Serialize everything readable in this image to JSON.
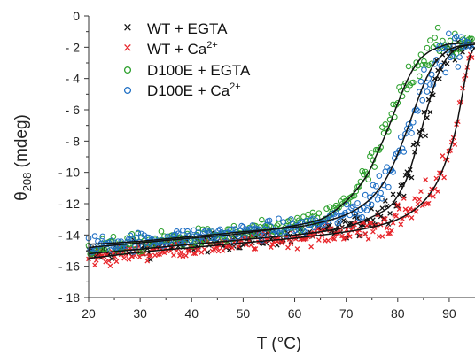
{
  "chart_data": {
    "type": "scatter",
    "xlabel": "T (°C)",
    "ylabel_main": "θ",
    "ylabel_sub": "208",
    "ylabel_rest": " (mdeg)",
    "xlim": [
      20,
      95
    ],
    "ylim": [
      -18,
      0
    ],
    "xticks": [
      20,
      30,
      40,
      50,
      60,
      70,
      80,
      90
    ],
    "yticks": [
      0,
      -2,
      -4,
      -6,
      -8,
      -10,
      -12,
      -14,
      -16,
      -18
    ],
    "grid": false,
    "legend_position": "top-center",
    "series": [
      {
        "name_main": "WT + EGTA",
        "name_sup": "",
        "color": "#111111",
        "marker": "x",
        "fit": [
          [
            20,
            -15.2
          ],
          [
            30,
            -14.9
          ],
          [
            40,
            -14.6
          ],
          [
            50,
            -14.3
          ],
          [
            60,
            -14.0
          ],
          [
            65,
            -13.8
          ],
          [
            70,
            -13.5
          ],
          [
            74,
            -13.0
          ],
          [
            78,
            -12.3
          ],
          [
            80,
            -11.5
          ],
          [
            82,
            -10.2
          ],
          [
            84,
            -8.0
          ],
          [
            86,
            -5.6
          ],
          [
            88,
            -3.6
          ],
          [
            90,
            -2.5
          ],
          [
            92,
            -2.0
          ],
          [
            95,
            -1.8
          ]
        ]
      },
      {
        "name_main": "WT + Ca",
        "name_sup": "2+",
        "color": "#e8262b",
        "marker": "x",
        "fit": [
          [
            20,
            -15.5
          ],
          [
            30,
            -15.1
          ],
          [
            40,
            -14.8
          ],
          [
            50,
            -14.5
          ],
          [
            60,
            -14.2
          ],
          [
            70,
            -13.8
          ],
          [
            75,
            -13.5
          ],
          [
            80,
            -13.0
          ],
          [
            84,
            -12.2
          ],
          [
            87,
            -11.0
          ],
          [
            89,
            -9.6
          ],
          [
            91,
            -7.6
          ],
          [
            92,
            -6.0
          ],
          [
            93,
            -4.2
          ],
          [
            94,
            -2.6
          ],
          [
            95,
            -2.0
          ]
        ]
      },
      {
        "name_main": "D100E + EGTA",
        "name_sup": "",
        "color": "#2ca02c",
        "marker": "o",
        "fit": [
          [
            20,
            -14.8
          ],
          [
            30,
            -14.5
          ],
          [
            40,
            -14.2
          ],
          [
            50,
            -13.9
          ],
          [
            60,
            -13.4
          ],
          [
            65,
            -13.0
          ],
          [
            68,
            -12.4
          ],
          [
            71,
            -11.5
          ],
          [
            74,
            -10.2
          ],
          [
            76,
            -8.8
          ],
          [
            78,
            -7.3
          ],
          [
            80,
            -5.6
          ],
          [
            82,
            -4.0
          ],
          [
            84,
            -2.9
          ],
          [
            86,
            -2.3
          ],
          [
            88,
            -2.0
          ],
          [
            90,
            -1.8
          ],
          [
            95,
            -1.7
          ]
        ]
      },
      {
        "name_main": "D100E + Ca",
        "name_sup": "2+",
        "color": "#1f6fc4",
        "marker": "o",
        "fit": [
          [
            20,
            -14.6
          ],
          [
            30,
            -14.4
          ],
          [
            40,
            -14.1
          ],
          [
            50,
            -13.8
          ],
          [
            60,
            -13.5
          ],
          [
            65,
            -13.2
          ],
          [
            70,
            -12.7
          ],
          [
            74,
            -11.9
          ],
          [
            77,
            -10.8
          ],
          [
            79,
            -9.6
          ],
          [
            81,
            -8.0
          ],
          [
            83,
            -6.2
          ],
          [
            85,
            -4.4
          ],
          [
            87,
            -3.1
          ],
          [
            89,
            -2.4
          ],
          [
            91,
            -2.0
          ],
          [
            95,
            -1.8
          ]
        ]
      }
    ]
  }
}
